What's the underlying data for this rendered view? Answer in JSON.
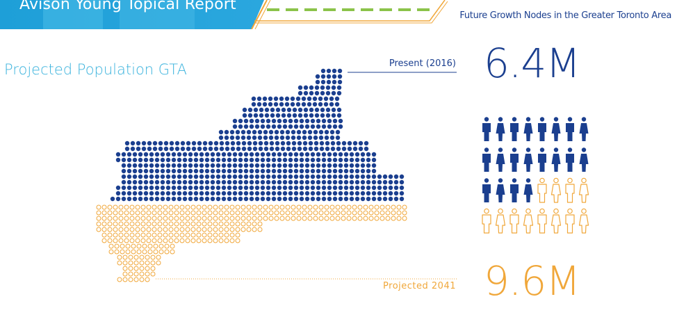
{
  "header": {
    "report_title": "Avison Young Topical Report",
    "subtitle": "Future Growth Nodes in the Greater Toronto Area"
  },
  "main": {
    "title": "Projected Population GTA",
    "present_label": "Present (2016)",
    "present_value": "6.4M",
    "projected_label": "Projected 2041",
    "projected_value": "9.6M"
  },
  "colors": {
    "present": "#1b3f8f",
    "projected": "#f0a73a",
    "accent": "#3bb3dd",
    "dash": "#8bc34a"
  },
  "icon_grid": {
    "total": 32,
    "filled": 20,
    "icon": "person-icon"
  }
}
